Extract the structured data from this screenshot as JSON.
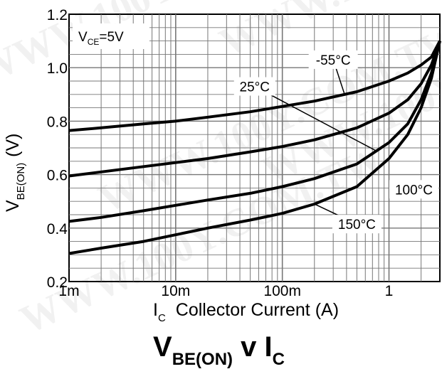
{
  "chart_data": {
    "type": "line",
    "title": {
      "main": "V",
      "main_sub": "BE(ON)",
      "mid": " v I",
      "mid_sub": "C"
    },
    "xlabel": {
      "prefix": "I",
      "sub": "C",
      "text": "Collector Current (A)"
    },
    "ylabel": {
      "main": "V",
      "sub": "BE(ON)",
      "unit": "(V)"
    },
    "x_scale": "log",
    "xlim": [
      0.001,
      3.0
    ],
    "ylim": [
      0.2,
      1.2
    ],
    "x_ticks": [
      {
        "value": 0.001,
        "label": "1m"
      },
      {
        "value": 0.01,
        "label": "10m"
      },
      {
        "value": 0.1,
        "label": "100m"
      },
      {
        "value": 1,
        "label": "1"
      }
    ],
    "y_ticks": [
      {
        "value": 0.2,
        "label": "0.2"
      },
      {
        "value": 0.4,
        "label": "0.4"
      },
      {
        "value": 0.6,
        "label": "0.6"
      },
      {
        "value": 0.8,
        "label": "0.8"
      },
      {
        "value": 1.0,
        "label": "1.0"
      },
      {
        "value": 1.2,
        "label": "1.2"
      }
    ],
    "grid": true,
    "condition": {
      "prefix": "V",
      "sub": "CE",
      "text": "=5V"
    },
    "series": [
      {
        "name": "-55°C",
        "x": [
          0.001,
          0.002,
          0.005,
          0.01,
          0.02,
          0.05,
          0.1,
          0.2,
          0.5,
          1.0,
          1.5,
          2.0,
          2.5,
          3.0
        ],
        "y": [
          0.765,
          0.775,
          0.79,
          0.8,
          0.815,
          0.835,
          0.855,
          0.875,
          0.91,
          0.95,
          0.98,
          1.01,
          1.04,
          1.1
        ]
      },
      {
        "name": "25°C",
        "x": [
          0.001,
          0.002,
          0.005,
          0.01,
          0.02,
          0.05,
          0.1,
          0.2,
          0.5,
          1.0,
          1.5,
          2.0,
          2.5,
          3.0
        ],
        "y": [
          0.595,
          0.61,
          0.63,
          0.645,
          0.66,
          0.685,
          0.705,
          0.73,
          0.775,
          0.83,
          0.88,
          0.94,
          1.01,
          1.1
        ]
      },
      {
        "name": "100°C",
        "x": [
          0.001,
          0.002,
          0.005,
          0.01,
          0.02,
          0.05,
          0.1,
          0.2,
          0.5,
          1.0,
          1.5,
          2.0,
          2.5,
          3.0
        ],
        "y": [
          0.425,
          0.44,
          0.465,
          0.485,
          0.505,
          0.53,
          0.555,
          0.585,
          0.64,
          0.72,
          0.79,
          0.88,
          0.98,
          1.1
        ]
      },
      {
        "name": "150°C",
        "x": [
          0.001,
          0.002,
          0.005,
          0.01,
          0.02,
          0.05,
          0.1,
          0.2,
          0.5,
          1.0,
          1.5,
          2.0,
          2.5,
          3.0
        ],
        "y": [
          0.305,
          0.325,
          0.35,
          0.375,
          0.4,
          0.43,
          0.455,
          0.49,
          0.555,
          0.66,
          0.75,
          0.85,
          0.96,
          1.1
        ]
      }
    ],
    "labels": [
      {
        "text": "-55°C",
        "tx": 0.3,
        "ty": 1.03,
        "ax": 0.38,
        "ay": 0.905
      },
      {
        "text": "25°C",
        "tx": 0.055,
        "ty": 0.93,
        "ax": 0.75,
        "ay": 0.69
      },
      {
        "text": "100°C",
        "tx": 3.0,
        "ty": 0.545,
        "ax": 1.4,
        "ay": 0.545
      },
      {
        "text": "150°C",
        "tx": 0.5,
        "ty": 0.415,
        "ax": 0.2,
        "ay": 0.49
      }
    ],
    "watermark": "WWW.100Y.COM.TW"
  }
}
